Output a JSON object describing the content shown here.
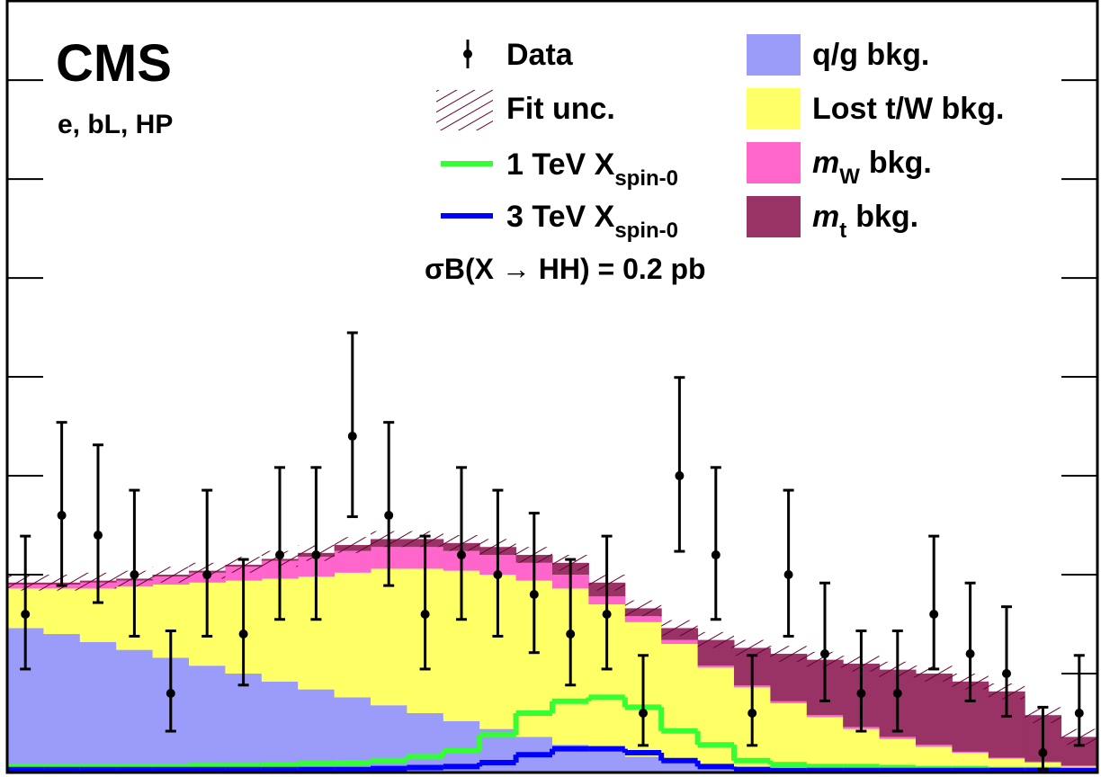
{
  "chart_data": {
    "type": "stacked_histogram",
    "annotations": {
      "experiment": "CMS",
      "channel": "e, bL, HP",
      "cross_section": "σB(X → HH) = 0.2 pb"
    },
    "categories": [
      null,
      null,
      null,
      null,
      null,
      null,
      null,
      null,
      null,
      null,
      null,
      null,
      null,
      null,
      null,
      null,
      null,
      null,
      null,
      null,
      null,
      null,
      null,
      null,
      null,
      null,
      null,
      null,
      null,
      null
    ],
    "ylim": [
      0,
      39.05
    ],
    "yticks": [
      0,
      5,
      10,
      15,
      20,
      25,
      30,
      35
    ],
    "data": {
      "name": "Data",
      "color": "#000000",
      "values": [
        8,
        13,
        12,
        10,
        4,
        10,
        7,
        11,
        11,
        17,
        13,
        8,
        11,
        10,
        9,
        7,
        8,
        3,
        15,
        11,
        3,
        10,
        6,
        4,
        4,
        8,
        6,
        5,
        1,
        3
      ],
      "errors_low": [
        2.77,
        3.55,
        3.41,
        3.11,
        1.91,
        3.11,
        2.58,
        3.26,
        3.26,
        4.07,
        3.55,
        2.77,
        3.26,
        3.11,
        2.94,
        2.58,
        2.77,
        1.63,
        3.82,
        3.26,
        1.63,
        3.11,
        2.38,
        1.91,
        1.91,
        2.77,
        2.38,
        2.16,
        0.83,
        1.63
      ],
      "errors_high": [
        3.95,
        4.7,
        4.56,
        4.27,
        3.16,
        4.27,
        3.77,
        4.42,
        4.42,
        5.23,
        4.7,
        3.95,
        4.42,
        4.27,
        4.11,
        3.77,
        3.95,
        2.92,
        4.97,
        4.42,
        2.92,
        4.27,
        3.58,
        3.16,
        3.16,
        3.95,
        3.58,
        3.38,
        2.3,
        2.92
      ]
    },
    "fit_uncertainty": {
      "name": "Fit unc.",
      "color": "#660033",
      "values": [
        0.4,
        0.4,
        0.4,
        0.4,
        0.4,
        0.4,
        0.4,
        0.4,
        0.4,
        0.4,
        0.4,
        0.4,
        0.4,
        0.4,
        0.4,
        0.4,
        0.4,
        0.4,
        0.4,
        0.4,
        0.4,
        0.4,
        0.4,
        0.4,
        0.4,
        0.4,
        0.4,
        0.4,
        0.4,
        0.4
      ]
    },
    "series": [
      {
        "name": "q/g bkg.",
        "color": "#9b9bfa",
        "values": [
          7.3,
          7.0,
          6.6,
          6.2,
          5.8,
          5.4,
          5.0,
          4.6,
          4.2,
          3.8,
          3.4,
          3.0,
          2.6,
          2.2,
          1.8,
          1.4,
          1.1,
          0.8,
          0.6,
          0.4,
          0.3,
          0.2,
          0.15,
          0.1,
          0.1,
          0.05,
          0.05,
          0.03,
          0.02,
          0.02
        ]
      },
      {
        "name": "Lost t/W bkg.",
        "color": "#ffff66",
        "values": [
          2.0,
          2.3,
          2.7,
          3.2,
          3.7,
          4.2,
          4.7,
          5.2,
          5.7,
          6.3,
          6.9,
          7.3,
          7.6,
          7.8,
          7.9,
          7.9,
          7.4,
          6.8,
          5.9,
          4.9,
          4.0,
          3.3,
          2.65,
          2.1,
          1.6,
          1.25,
          0.95,
          0.67,
          0.48,
          0.28
        ]
      },
      {
        "name": "m",
        "name_sub": "W",
        "name_suffix": "bkg.",
        "color": "#ff66cc",
        "values": [
          0.2,
          0.2,
          0.3,
          0.3,
          0.4,
          0.5,
          0.7,
          0.9,
          1.0,
          1.1,
          1.1,
          1.1,
          1.0,
          1.0,
          0.9,
          0.7,
          0.4,
          0.3,
          0.2,
          0.1,
          0.1,
          0.1,
          0.1,
          0.1,
          0.1,
          0.1,
          0.05,
          0.05,
          0.05,
          0.05
        ]
      },
      {
        "name": "m",
        "name_sub": "t",
        "name_suffix": "bkg.",
        "color": "#993366",
        "values": [
          0.1,
          0.1,
          0.1,
          0.1,
          0.1,
          0.1,
          0.1,
          0.1,
          0.2,
          0.3,
          0.4,
          0.4,
          0.4,
          0.4,
          0.4,
          0.6,
          0.7,
          0.4,
          0.6,
          1.3,
          1.9,
          2.4,
          2.8,
          3.2,
          3.4,
          3.6,
          3.55,
          3.35,
          2.35,
          1.45
        ]
      }
    ],
    "signals": [
      {
        "name": "1 TeV X",
        "name_sub": "spin-0",
        "color": "#33ff33",
        "values": [
          0.3,
          0.3,
          0.3,
          0.3,
          0.3,
          0.35,
          0.35,
          0.4,
          0.45,
          0.5,
          0.6,
          0.8,
          1.1,
          1.9,
          3.0,
          3.6,
          3.8,
          3.3,
          2.1,
          1.4,
          0.6,
          0.4,
          0.3,
          0.3,
          0.25,
          0.2,
          0.2,
          0.15,
          0.15,
          0.1
        ]
      },
      {
        "name": "3 TeV X",
        "name_sub": "spin-0",
        "color": "#0000ff",
        "values": [
          0.15,
          0.15,
          0.15,
          0.15,
          0.15,
          0.15,
          0.15,
          0.15,
          0.15,
          0.15,
          0.2,
          0.25,
          0.3,
          0.5,
          0.9,
          1.2,
          1.2,
          1.0,
          0.6,
          0.3,
          0.15,
          0.1,
          0.1,
          0.1,
          0.1,
          0.1,
          0.1,
          0.1,
          0.1,
          0.1
        ]
      }
    ]
  }
}
